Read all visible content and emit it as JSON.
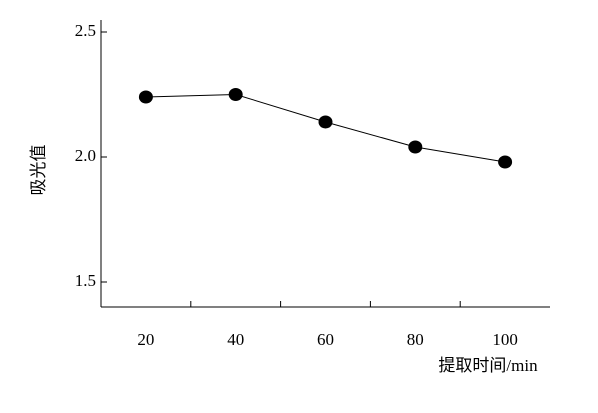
{
  "chart_data": {
    "type": "line",
    "categories": [
      "20",
      "40",
      "60",
      "80",
      "100"
    ],
    "series": [
      {
        "name": null,
        "color": "#000000",
        "values": [
          2.24,
          2.25,
          2.14,
          2.04,
          1.98
        ]
      }
    ],
    "ylim": [
      1.4,
      2.5
    ],
    "yticks": [
      1.5,
      {
        "value": 2,
        "label": "2.0"
      },
      2.5
    ],
    "y_label": "吸光值",
    "x_label": "提取时间/min",
    "grid": false
  }
}
